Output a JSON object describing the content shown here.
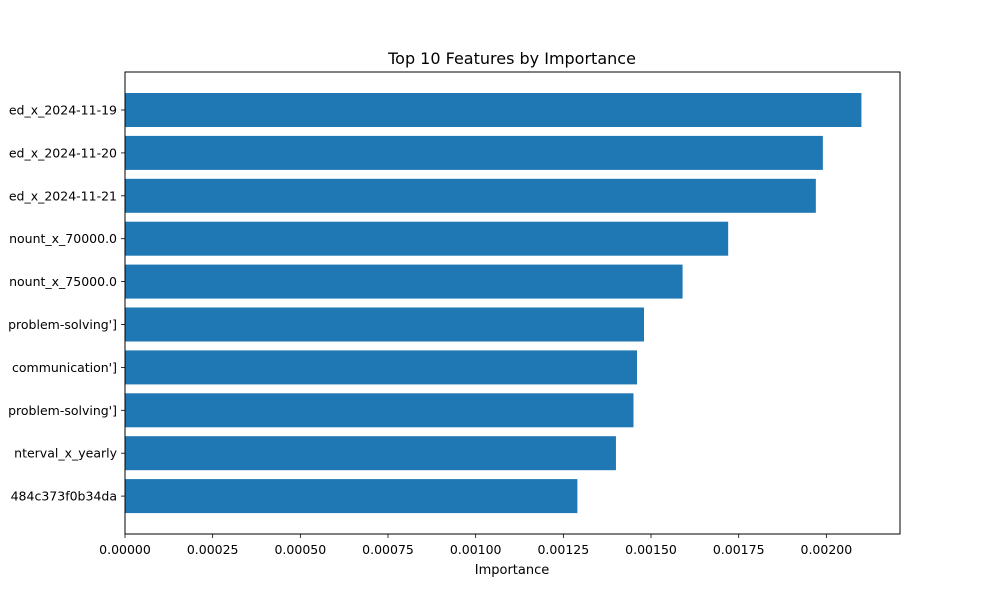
{
  "chart_data": {
    "type": "bar",
    "orientation": "horizontal",
    "title": "Top 10 Features by Importance",
    "xlabel": "Importance",
    "ylabel": "",
    "categories": [
      "ed_x_2024-11-19",
      "ed_x_2024-11-20",
      "ed_x_2024-11-21",
      "nount_x_70000.0",
      "nount_x_75000.0",
      "problem-solving']",
      "communication']",
      "problem-solving']",
      "nterval_x_yearly",
      "484c373f0b34da"
    ],
    "values": [
      0.0021,
      0.00199,
      0.00197,
      0.00172,
      0.00159,
      0.00148,
      0.00146,
      0.00145,
      0.0014,
      0.00129
    ],
    "xlim": [
      0,
      0.00221
    ],
    "xticks": [
      0.0,
      0.00025,
      0.0005,
      0.00075,
      0.001,
      0.00125,
      0.0015,
      0.00175,
      0.002
    ],
    "xtick_labels": [
      "0.00000",
      "0.00025",
      "0.00050",
      "0.00075",
      "0.00100",
      "0.00125",
      "0.00150",
      "0.00175",
      "0.00200"
    ],
    "bar_color": "#1f77b4",
    "grid": false,
    "legend": "none"
  }
}
